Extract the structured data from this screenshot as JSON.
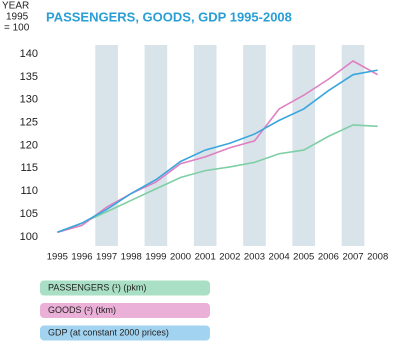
{
  "chart_data": {
    "type": "line",
    "title": "PASSENGERS, GOODS, GDP 1995-2008",
    "y_label": [
      "YEAR",
      "1995",
      "= 100"
    ],
    "categories": [
      "1995",
      "1996",
      "1997",
      "1998",
      "1999",
      "2000",
      "2001",
      "2002",
      "2003",
      "2004",
      "2005",
      "2006",
      "2007",
      "2008"
    ],
    "series": [
      {
        "name": "PASSENGERS (¹) (pkm)",
        "color": "#7ecfa6",
        "legend_color": "#a9dfc4",
        "values": [
          101,
          103,
          105.5,
          108,
          110.5,
          113,
          114.5,
          115.3,
          116.3,
          118.2,
          119,
          122,
          124.5,
          124.2
        ]
      },
      {
        "name": "GOODS (²) (tkm)",
        "color": "#de80c2",
        "legend_color": "#ebb0d8",
        "values": [
          101,
          102.5,
          106.5,
          109.5,
          112,
          116,
          117.5,
          119.5,
          121,
          128,
          131,
          134.5,
          138.5,
          135.5
        ]
      },
      {
        "name": "GDP (at constant 2000 prices)",
        "color": "#3aa6de",
        "legend_color": "#a2d3f0",
        "values": [
          101,
          103,
          106,
          109.5,
          112.5,
          116.5,
          119,
          120.5,
          122.5,
          125.5,
          128,
          132,
          135.5,
          136.5
        ]
      }
    ],
    "ylim": [
      98,
      142
    ],
    "yticks": [
      100,
      105,
      110,
      115,
      120,
      125,
      130,
      135,
      140
    ]
  }
}
